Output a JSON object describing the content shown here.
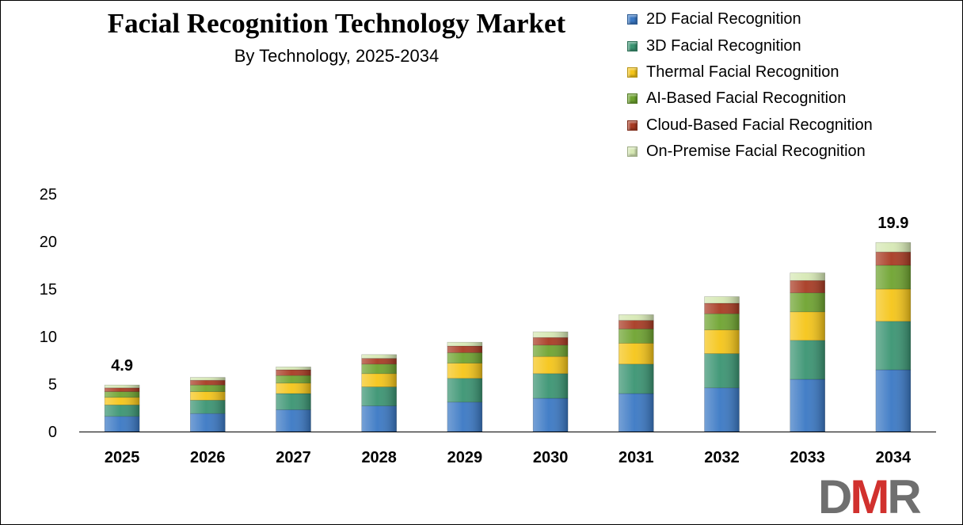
{
  "colors": {
    "series": [
      "#3a78c4",
      "#3a9472",
      "#f5c518",
      "#6ea32f",
      "#a83a22",
      "#d6e8b4"
    ],
    "logo_d": "#6f6f6f",
    "logo_m": "#d1312e",
    "logo_r": "#6f6f6f"
  },
  "logo": {
    "d": "D",
    "m": "M",
    "r": "R"
  },
  "chart_data": {
    "type": "bar",
    "stacked": true,
    "title": "Facial Recognition Technology Market",
    "subtitle": "By Technology, 2025-2034",
    "categories": [
      "2025",
      "2026",
      "2027",
      "2028",
      "2029",
      "2030",
      "2031",
      "2032",
      "2033",
      "2034"
    ],
    "series": [
      {
        "name": "2D Facial Recognition",
        "values": [
          1.6,
          1.9,
          2.3,
          2.7,
          3.1,
          3.5,
          4.0,
          4.6,
          5.5,
          6.5
        ]
      },
      {
        "name": "3D Facial Recognition",
        "values": [
          1.2,
          1.4,
          1.7,
          2.0,
          2.5,
          2.6,
          3.1,
          3.6,
          4.1,
          5.1
        ]
      },
      {
        "name": "Thermal Facial Recognition",
        "values": [
          0.8,
          0.9,
          1.1,
          1.4,
          1.6,
          1.8,
          2.2,
          2.5,
          3.0,
          3.4
        ]
      },
      {
        "name": "AI-Based Facial Recognition",
        "values": [
          0.6,
          0.7,
          0.8,
          1.0,
          1.1,
          1.2,
          1.5,
          1.7,
          2.0,
          2.5
        ]
      },
      {
        "name": "Cloud-Based Facial Recognition",
        "values": [
          0.4,
          0.5,
          0.6,
          0.6,
          0.7,
          0.8,
          0.9,
          1.1,
          1.3,
          1.4
        ]
      },
      {
        "name": "On-Premise Facial Recognition",
        "values": [
          0.3,
          0.3,
          0.3,
          0.4,
          0.4,
          0.6,
          0.6,
          0.7,
          0.8,
          1.0
        ]
      }
    ],
    "data_labels": [
      {
        "category": "2025",
        "text": "4.9"
      },
      {
        "category": "2034",
        "text": "19.9"
      }
    ],
    "yticks": [
      0,
      5,
      10,
      15,
      20,
      25
    ],
    "ylim": [
      0,
      25
    ],
    "xlabel": "",
    "ylabel": "",
    "grid": false,
    "legend_position": "top-right"
  }
}
